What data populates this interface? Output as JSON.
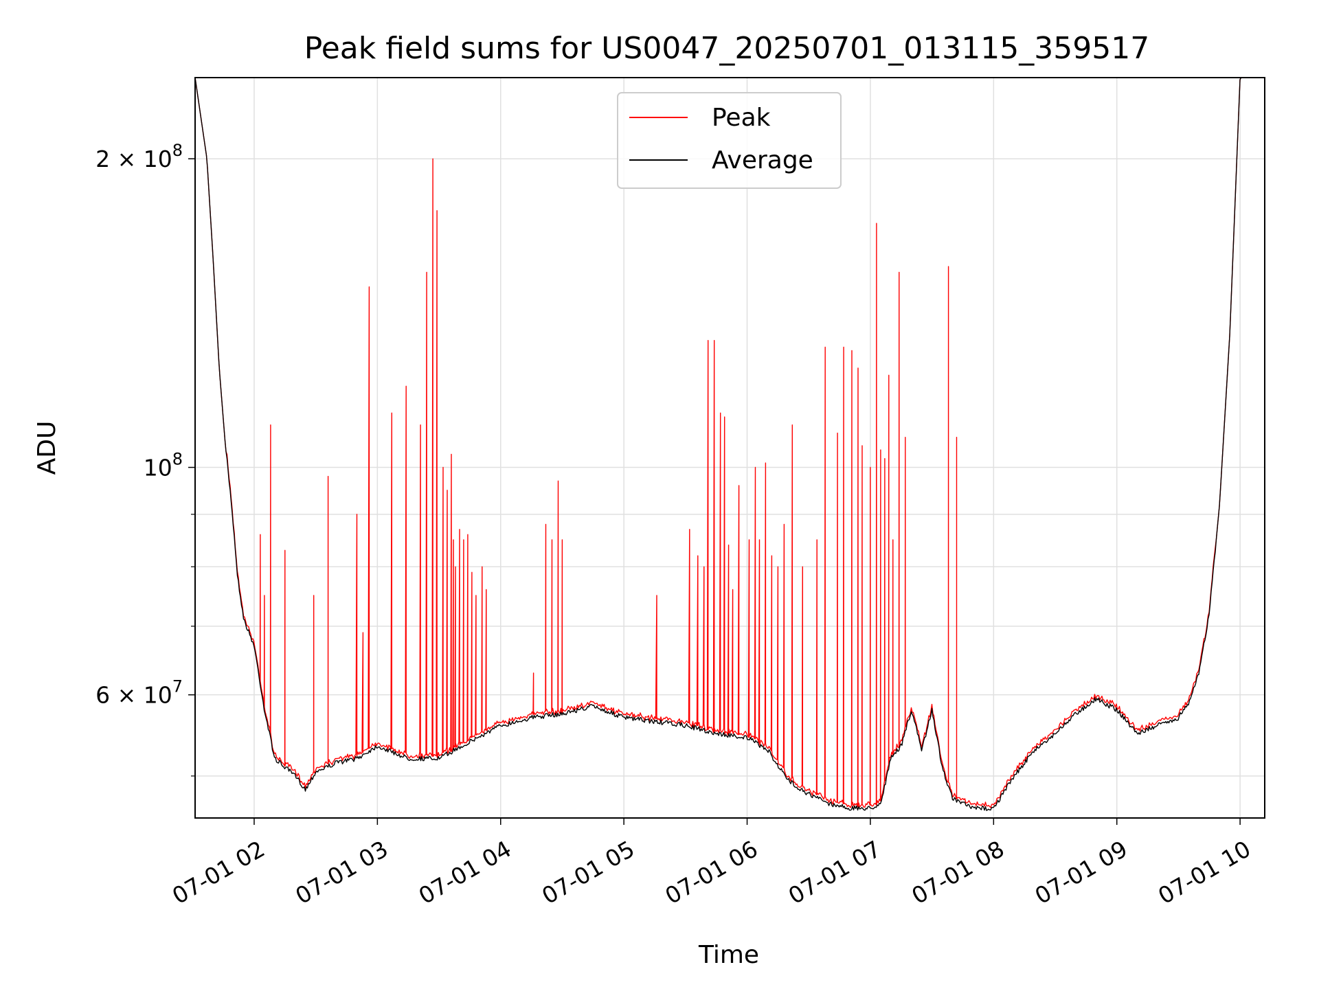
{
  "chart_data": {
    "type": "line",
    "title": "Peak field sums for US0047_20250701_013115_359517",
    "xlabel": "Time",
    "ylabel": "ADU",
    "yscale": "log",
    "xlim": [
      "2025-07-01 01:31:15",
      "2025-07-01 10:12:00"
    ],
    "ylim": [
      45500000,
      240000000
    ],
    "grid": true,
    "legend_position": "top-center",
    "x_tick_labels": [
      "07-01 02",
      "07-01 03",
      "07-01 04",
      "07-01 05",
      "07-01 06",
      "07-01 07",
      "07-01 08",
      "07-01 09",
      "07-01 10"
    ],
    "x_ticks": [
      "2025-07-01 02:00",
      "2025-07-01 03:00",
      "2025-07-01 04:00",
      "2025-07-01 05:00",
      "2025-07-01 06:00",
      "2025-07-01 07:00",
      "2025-07-01 08:00",
      "2025-07-01 09:00",
      "2025-07-01 10:00"
    ],
    "y_major_ticks": [
      {
        "value": 200000000,
        "mantissa": "2",
        "exp": "8"
      },
      {
        "value": 100000000,
        "mantissa": "",
        "exp": "8"
      },
      {
        "value": 60000000,
        "mantissa": "6",
        "exp": "7"
      }
    ],
    "y_minor_ticks": [
      50000000,
      70000000,
      80000000,
      90000000
    ],
    "series": [
      {
        "name": "Peak",
        "color": "#ff0000"
      },
      {
        "name": "Average",
        "color": "#000000"
      }
    ],
    "average": {
      "x": [
        "2025-07-01 01:31:15",
        "2025-07-01 01:37",
        "2025-07-01 01:40",
        "2025-07-01 01:43",
        "2025-07-01 01:46",
        "2025-07-01 01:49",
        "2025-07-01 01:52",
        "2025-07-01 01:55",
        "2025-07-01 02:00",
        "2025-07-01 02:05",
        "2025-07-01 02:10",
        "2025-07-01 02:15",
        "2025-07-01 02:20",
        "2025-07-01 02:25",
        "2025-07-01 02:30",
        "2025-07-01 02:40",
        "2025-07-01 02:50",
        "2025-07-01 03:00",
        "2025-07-01 03:15",
        "2025-07-01 03:30",
        "2025-07-01 03:45",
        "2025-07-01 04:00",
        "2025-07-01 04:15",
        "2025-07-01 04:30",
        "2025-07-01 04:45",
        "2025-07-01 05:00",
        "2025-07-01 05:15",
        "2025-07-01 05:30",
        "2025-07-01 05:45",
        "2025-07-01 06:00",
        "2025-07-01 06:10",
        "2025-07-01 06:20",
        "2025-07-01 06:30",
        "2025-07-01 06:40",
        "2025-07-01 06:50",
        "2025-07-01 07:00",
        "2025-07-01 07:05",
        "2025-07-01 07:10",
        "2025-07-01 07:15",
        "2025-07-01 07:20",
        "2025-07-01 07:25",
        "2025-07-01 07:30",
        "2025-07-01 07:35",
        "2025-07-01 07:40",
        "2025-07-01 07:45",
        "2025-07-01 07:50",
        "2025-07-01 08:00",
        "2025-07-01 08:10",
        "2025-07-01 08:20",
        "2025-07-01 08:30",
        "2025-07-01 08:40",
        "2025-07-01 08:50",
        "2025-07-01 09:00",
        "2025-07-01 09:10",
        "2025-07-01 09:20",
        "2025-07-01 09:30",
        "2025-07-01 09:35",
        "2025-07-01 09:40",
        "2025-07-01 09:45",
        "2025-07-01 09:50",
        "2025-07-01 09:55",
        "2025-07-01 10:00"
      ],
      "y": [
        240000000,
        200000000,
        160000000,
        125000000,
        105000000,
        92000000,
        78000000,
        71000000,
        67000000,
        58000000,
        52000000,
        51000000,
        50000000,
        48500000,
        50500000,
        51500000,
        52000000,
        53500000,
        52000000,
        52000000,
        54000000,
        56000000,
        57000000,
        57500000,
        58500000,
        57000000,
        56500000,
        56000000,
        55000000,
        54500000,
        53000000,
        49500000,
        48000000,
        47000000,
        46500000,
        46500000,
        47000000,
        52000000,
        53500000,
        58000000,
        53000000,
        58000000,
        51000000,
        47500000,
        47000000,
        46500000,
        46500000,
        50000000,
        53000000,
        55000000,
        57500000,
        59500000,
        58000000,
        55000000,
        56000000,
        57000000,
        59000000,
        63000000,
        72000000,
        92000000,
        135000000,
        240000000
      ]
    },
    "peak_spikes": {
      "x": [
        "2025-07-01 02:03",
        "2025-07-01 02:05",
        "2025-07-01 02:08",
        "2025-07-01 02:15",
        "2025-07-01 02:29",
        "2025-07-01 02:36",
        "2025-07-01 02:50",
        "2025-07-01 02:53",
        "2025-07-01 02:56",
        "2025-07-01 03:07",
        "2025-07-01 03:14",
        "2025-07-01 03:21",
        "2025-07-01 03:24",
        "2025-07-01 03:27",
        "2025-07-01 03:29",
        "2025-07-01 03:32",
        "2025-07-01 03:34",
        "2025-07-01 03:36",
        "2025-07-01 03:37",
        "2025-07-01 03:38",
        "2025-07-01 03:40",
        "2025-07-01 03:42",
        "2025-07-01 03:44",
        "2025-07-01 03:46",
        "2025-07-01 03:48",
        "2025-07-01 03:51",
        "2025-07-01 03:53",
        "2025-07-01 04:16",
        "2025-07-01 04:22",
        "2025-07-01 04:25",
        "2025-07-01 04:28",
        "2025-07-01 04:30",
        "2025-07-01 05:16",
        "2025-07-01 05:32",
        "2025-07-01 05:36",
        "2025-07-01 05:39",
        "2025-07-01 05:41",
        "2025-07-01 05:44",
        "2025-07-01 05:47",
        "2025-07-01 05:49",
        "2025-07-01 05:51",
        "2025-07-01 05:53",
        "2025-07-01 05:56",
        "2025-07-01 06:01",
        "2025-07-01 06:04",
        "2025-07-01 06:06",
        "2025-07-01 06:09",
        "2025-07-01 06:12",
        "2025-07-01 06:15",
        "2025-07-01 06:18",
        "2025-07-01 06:22",
        "2025-07-01 06:27",
        "2025-07-01 06:34",
        "2025-07-01 06:38",
        "2025-07-01 06:44",
        "2025-07-01 06:47",
        "2025-07-01 06:51",
        "2025-07-01 06:54",
        "2025-07-01 06:56",
        "2025-07-01 07:00",
        "2025-07-01 07:03",
        "2025-07-01 07:05",
        "2025-07-01 07:07",
        "2025-07-01 07:09",
        "2025-07-01 07:11",
        "2025-07-01 07:14",
        "2025-07-01 07:17",
        "2025-07-01 07:38",
        "2025-07-01 07:42"
      ],
      "y": [
        86000000,
        75000000,
        110000000,
        83000000,
        75000000,
        98000000,
        90000000,
        69000000,
        150000000,
        113000000,
        120000000,
        110000000,
        155000000,
        200000000,
        178000000,
        100000000,
        95000000,
        103000000,
        85000000,
        80000000,
        87000000,
        85000000,
        86000000,
        79000000,
        75000000,
        80000000,
        76000000,
        63000000,
        88000000,
        85000000,
        97000000,
        85000000,
        75000000,
        87000000,
        82000000,
        80000000,
        133000000,
        133000000,
        113000000,
        112000000,
        84000000,
        76000000,
        96000000,
        85000000,
        100000000,
        85000000,
        101000000,
        82000000,
        80000000,
        88000000,
        110000000,
        80000000,
        85000000,
        131000000,
        108000000,
        131000000,
        130000000,
        125000000,
        105000000,
        100000000,
        173000000,
        104000000,
        102000000,
        123000000,
        85000000,
        155000000,
        107000000,
        157000000,
        107000000
      ]
    },
    "legend_entries": [
      "Peak",
      "Average"
    ]
  }
}
